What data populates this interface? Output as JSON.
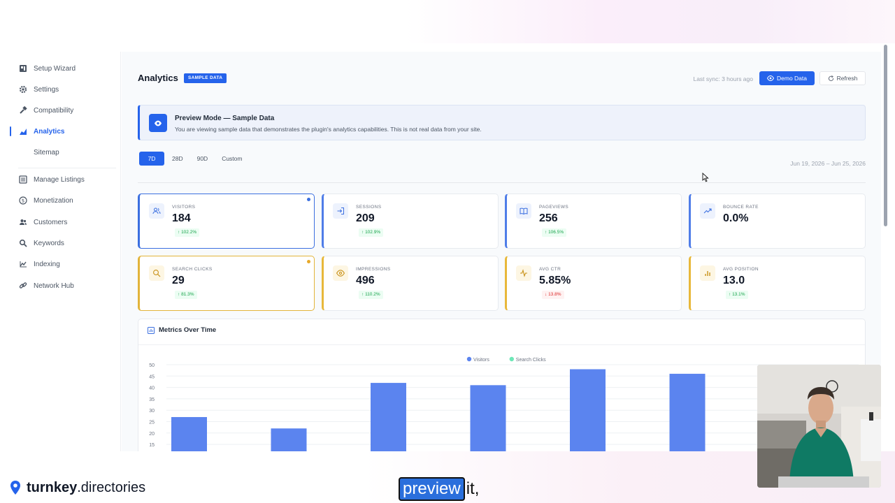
{
  "sidebar": {
    "items": [
      {
        "label": "Setup Wizard",
        "icon": "setup-wizard-icon"
      },
      {
        "label": "Settings",
        "icon": "gear-icon"
      },
      {
        "label": "Compatibility",
        "icon": "hammer-icon"
      },
      {
        "label": "Analytics",
        "icon": "bar-chart-icon",
        "active": true
      },
      {
        "label": "Sitemap",
        "icon": "sitemap-icon"
      },
      {
        "label": "Manage Listings",
        "icon": "list-icon"
      },
      {
        "label": "Monetization",
        "icon": "dollar-icon"
      },
      {
        "label": "Customers",
        "icon": "users-icon"
      },
      {
        "label": "Keywords",
        "icon": "search-icon"
      },
      {
        "label": "Indexing",
        "icon": "indexing-icon"
      },
      {
        "label": "Network Hub",
        "icon": "link-icon"
      }
    ]
  },
  "header": {
    "title": "Analytics",
    "badge": "SAMPLE DATA",
    "last_sync": "Last sync: 3 hours ago",
    "demo_button": "Demo Data",
    "refresh_button": "Refresh"
  },
  "banner": {
    "title": "Preview Mode — Sample Data",
    "description": "You are viewing sample data that demonstrates the plugin's analytics capabilities. This is not real data from your site."
  },
  "ranges": {
    "items": [
      "7D",
      "28D",
      "90D",
      "Custom"
    ],
    "selected": "7D"
  },
  "date_range": "Jun 19, 2026 – Jun 25, 2026",
  "metrics": [
    {
      "label": "VISITORS",
      "value": "184",
      "delta": "102.2%",
      "dir": "up"
    },
    {
      "label": "SESSIONS",
      "value": "209",
      "delta": "102.9%",
      "dir": "up"
    },
    {
      "label": "PAGEVIEWS",
      "value": "256",
      "delta": "106.5%",
      "dir": "up"
    },
    {
      "label": "BOUNCE RATE",
      "value": "0.0%",
      "delta": "",
      "dir": ""
    },
    {
      "label": "SEARCH CLICKS",
      "value": "29",
      "delta": "81.3%",
      "dir": "up"
    },
    {
      "label": "IMPRESSIONS",
      "value": "496",
      "delta": "110.2%",
      "dir": "up"
    },
    {
      "label": "AVG CTR",
      "value": "5.85%",
      "delta": "13.8%",
      "dir": "down"
    },
    {
      "label": "AVG POSITION",
      "value": "13.0",
      "delta": "13.1%",
      "dir": "up"
    }
  ],
  "chart_title": "Metrics Over Time",
  "chart_data": {
    "type": "bar",
    "title": "Metrics Over Time",
    "series": [
      {
        "name": "Visitors",
        "values": [
          27,
          22,
          42,
          41,
          48,
          46
        ],
        "color": "#5b84ef"
      },
      {
        "name": "Search Clicks",
        "values": [],
        "color": "#6ee7b7"
      }
    ],
    "yticks": [
      15,
      20,
      25,
      30,
      35,
      40,
      45,
      50
    ],
    "ylim": [
      15,
      50
    ],
    "legend": "top-center",
    "grid": true
  },
  "caption": {
    "brand_bold": "turnkey",
    "brand_rest": ".directories",
    "subtitle_highlight": "preview",
    "subtitle_rest": "it,"
  },
  "colors": {
    "accent": "#2563eb",
    "gold": "#e8b83a",
    "up": "#16a34a",
    "down": "#dc2626"
  }
}
